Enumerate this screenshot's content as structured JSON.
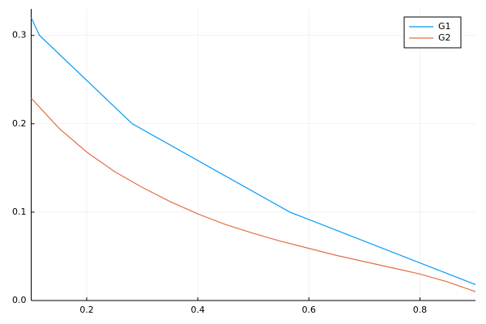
{
  "chart_data": {
    "type": "line",
    "xlim": [
      0.1,
      0.9
    ],
    "ylim": [
      0,
      0.33
    ],
    "xticks": [
      0.2,
      0.4,
      0.6,
      0.8
    ],
    "yticks": [
      {
        "value": 0,
        "label": "0.0"
      },
      0.1,
      0.2,
      0.3
    ],
    "grid": true,
    "legend": "top-right",
    "series": [
      {
        "name": "G1",
        "color": "#009af9",
        "x": [
          0.1,
          0.115,
          0.282,
          0.566,
          0.9
        ],
        "values": [
          0.32,
          0.3,
          0.2,
          0.1,
          0.018
        ]
      },
      {
        "name": "G2",
        "color": "#e26f46",
        "x": [
          0.1,
          0.15,
          0.2,
          0.25,
          0.3,
          0.35,
          0.4,
          0.45,
          0.5,
          0.55,
          0.6,
          0.65,
          0.7,
          0.75,
          0.8,
          0.85,
          0.9
        ],
        "values": [
          0.229,
          0.195,
          0.168,
          0.146,
          0.128,
          0.112,
          0.098,
          0.086,
          0.076,
          0.067,
          0.059,
          0.051,
          0.044,
          0.037,
          0.03,
          0.021,
          0.01
        ]
      }
    ]
  }
}
